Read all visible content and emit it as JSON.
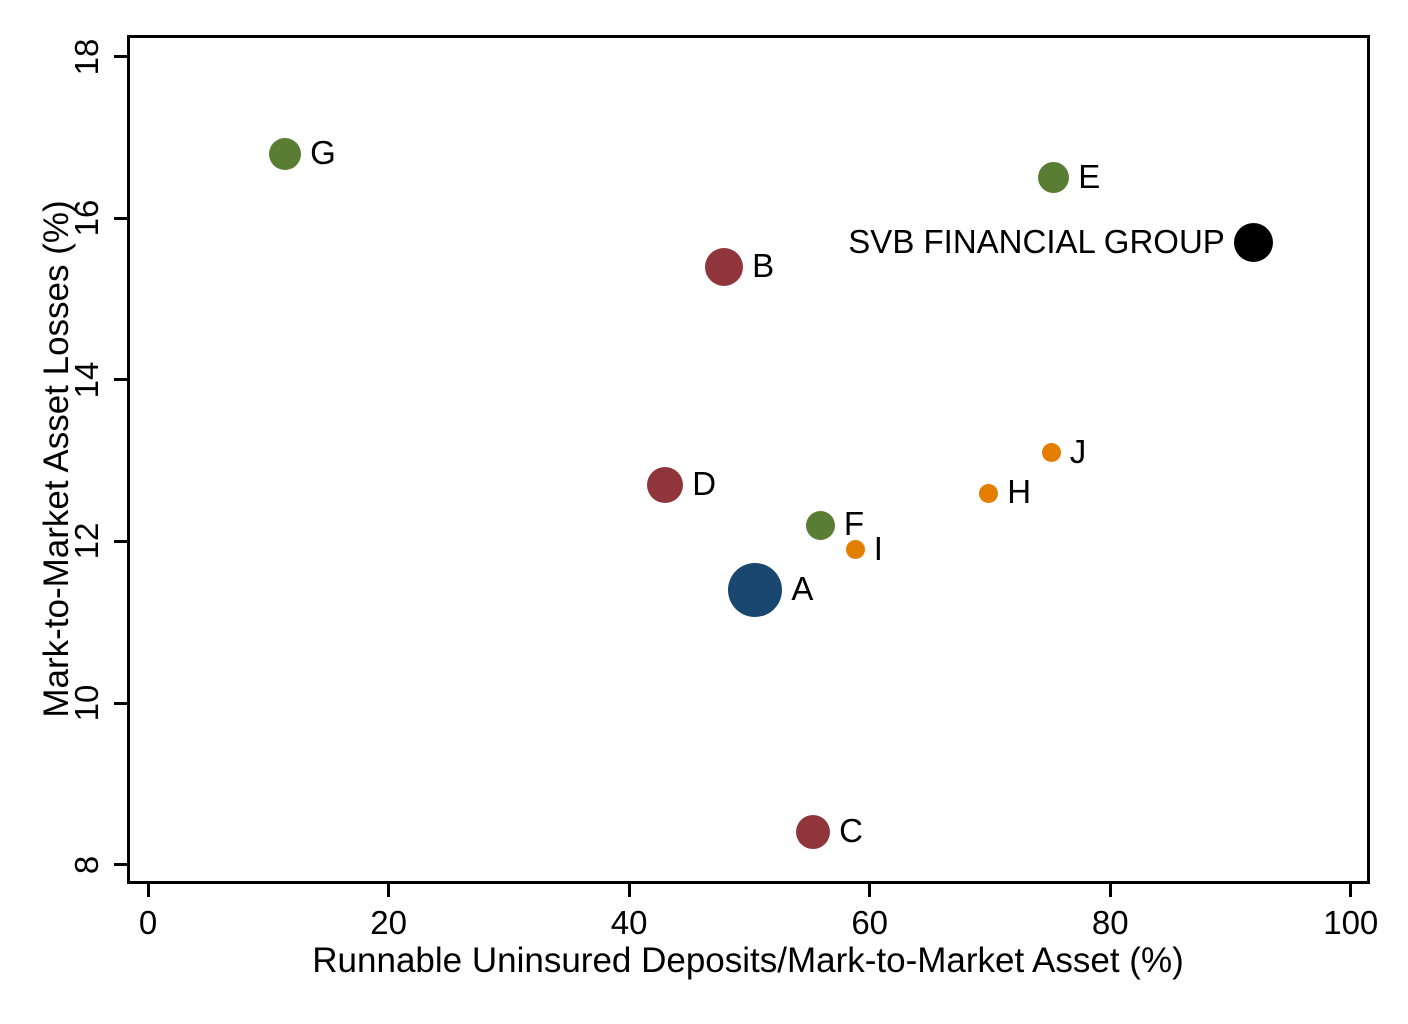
{
  "chart_data": {
    "type": "scatter",
    "title": "",
    "xlabel": "Runnable Uninsured Deposits/Mark-to-Market Asset (%)",
    "ylabel": "Mark-to-Market Asset Losses (%)",
    "xlim": [
      -1.75,
      101.6
    ],
    "ylim": [
      7.76,
      18.27
    ],
    "x_ticks": [
      0,
      20,
      40,
      60,
      80,
      100
    ],
    "y_ticks": [
      8,
      10,
      12,
      14,
      16,
      18
    ],
    "grid": false,
    "legend_position": "none",
    "colors": {
      "navy": "#1a476f",
      "maroon": "#90353b",
      "green": "#5a7d34",
      "orange": "#e37e00",
      "black": "#000000",
      "axis": "#000000"
    },
    "points": [
      {
        "label": "G",
        "x": 11.4,
        "y": 16.8,
        "color": "#5a7d34",
        "r": 16,
        "label_side": "right"
      },
      {
        "label": "E",
        "x": 75.3,
        "y": 16.5,
        "color": "#5a7d34",
        "r": 15.5,
        "label_side": "right"
      },
      {
        "label": "SVB FINANCIAL GROUP",
        "x": 91.9,
        "y": 15.7,
        "color": "#000000",
        "r": 19.5,
        "label_side": "left"
      },
      {
        "label": "B",
        "x": 47.9,
        "y": 15.4,
        "color": "#90353b",
        "r": 19,
        "label_side": "right"
      },
      {
        "label": "J",
        "x": 75.1,
        "y": 13.1,
        "color": "#e37e00",
        "r": 9.5,
        "label_side": "right"
      },
      {
        "label": "D",
        "x": 43.0,
        "y": 12.7,
        "color": "#90353b",
        "r": 18,
        "label_side": "right"
      },
      {
        "label": "H",
        "x": 69.9,
        "y": 12.6,
        "color": "#e37e00",
        "r": 9.5,
        "label_side": "right"
      },
      {
        "label": "F",
        "x": 55.9,
        "y": 12.2,
        "color": "#5a7d34",
        "r": 14.5,
        "label_side": "right"
      },
      {
        "label": "I",
        "x": 58.8,
        "y": 11.9,
        "color": "#e37e00",
        "r": 9.5,
        "label_side": "right"
      },
      {
        "label": "A",
        "x": 50.5,
        "y": 11.4,
        "color": "#1a476f",
        "r": 27,
        "label_side": "right"
      },
      {
        "label": "C",
        "x": 55.3,
        "y": 8.4,
        "color": "#90353b",
        "r": 17,
        "label_side": "right"
      }
    ]
  }
}
